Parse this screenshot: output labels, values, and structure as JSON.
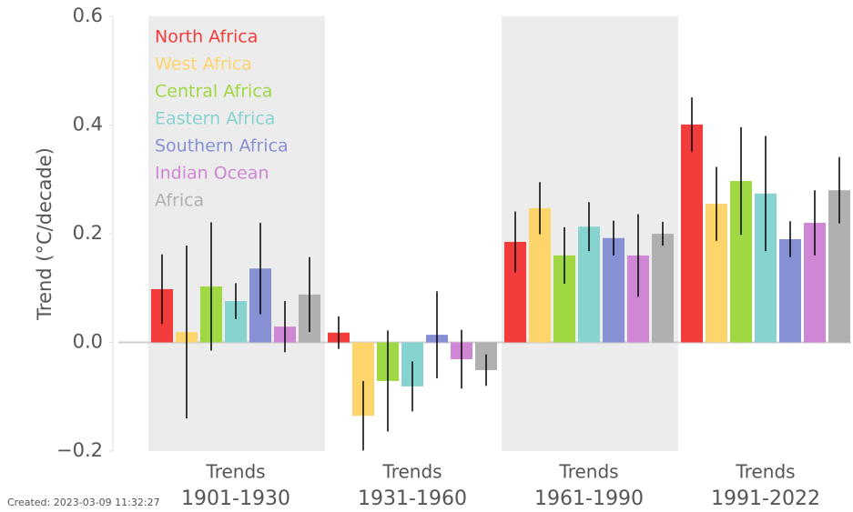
{
  "chart_data": {
    "type": "bar",
    "y_label": "Trend (°C/decade)",
    "footnote": "Created: 2023-03-09 11:32:27",
    "categories": [
      [
        "Trends",
        "1901-1930"
      ],
      [
        "Trends",
        "1931-1960"
      ],
      [
        "Trends",
        "1961-1990"
      ],
      [
        "Trends",
        "1991-2022"
      ]
    ],
    "shaded_categories": [
      0,
      2
    ],
    "ylim": [
      -0.2,
      0.6
    ],
    "yticks": [
      {
        "value": -0.2,
        "label": "−0.2"
      },
      {
        "value": 0,
        "label": "0.0"
      },
      0.2,
      0.4,
      0.6
    ],
    "legend": "upper left",
    "series": [
      {
        "name": "North Africa",
        "color": "#f23c3c",
        "values": [
          0.098,
          0.018,
          0.185,
          0.401
        ],
        "errors": [
          0.064,
          0.03,
          0.056,
          0.05
        ]
      },
      {
        "name": "West Africa",
        "color": "#fdd56b",
        "values": [
          0.019,
          -0.135,
          0.247,
          0.255
        ],
        "errors": [
          0.159,
          0.064,
          0.048,
          0.068
        ]
      },
      {
        "name": "Central Africa",
        "color": "#a0d843",
        "values": [
          0.103,
          -0.071,
          0.16,
          0.297
        ],
        "errors": [
          0.118,
          0.093,
          0.052,
          0.099
        ]
      },
      {
        "name": "Eastern Africa",
        "color": "#86d3cf",
        "values": [
          0.076,
          -0.081,
          0.213,
          0.274
        ],
        "errors": [
          0.033,
          0.046,
          0.045,
          0.106
        ]
      },
      {
        "name": "Southern Africa",
        "color": "#8890d4",
        "values": [
          0.136,
          0.014,
          0.192,
          0.19
        ],
        "errors": [
          0.084,
          0.08,
          0.032,
          0.033
        ]
      },
      {
        "name": "Indian Ocean",
        "color": "#cf86d4",
        "values": [
          0.029,
          -0.031,
          0.16,
          0.22
        ],
        "errors": [
          0.047,
          0.054,
          0.076,
          0.06
        ]
      },
      {
        "name": "Africa",
        "color": "#b0b0b0",
        "values": [
          0.088,
          -0.051,
          0.2,
          0.28
        ],
        "errors": [
          0.069,
          0.029,
          0.022,
          0.061
        ]
      }
    ]
  }
}
